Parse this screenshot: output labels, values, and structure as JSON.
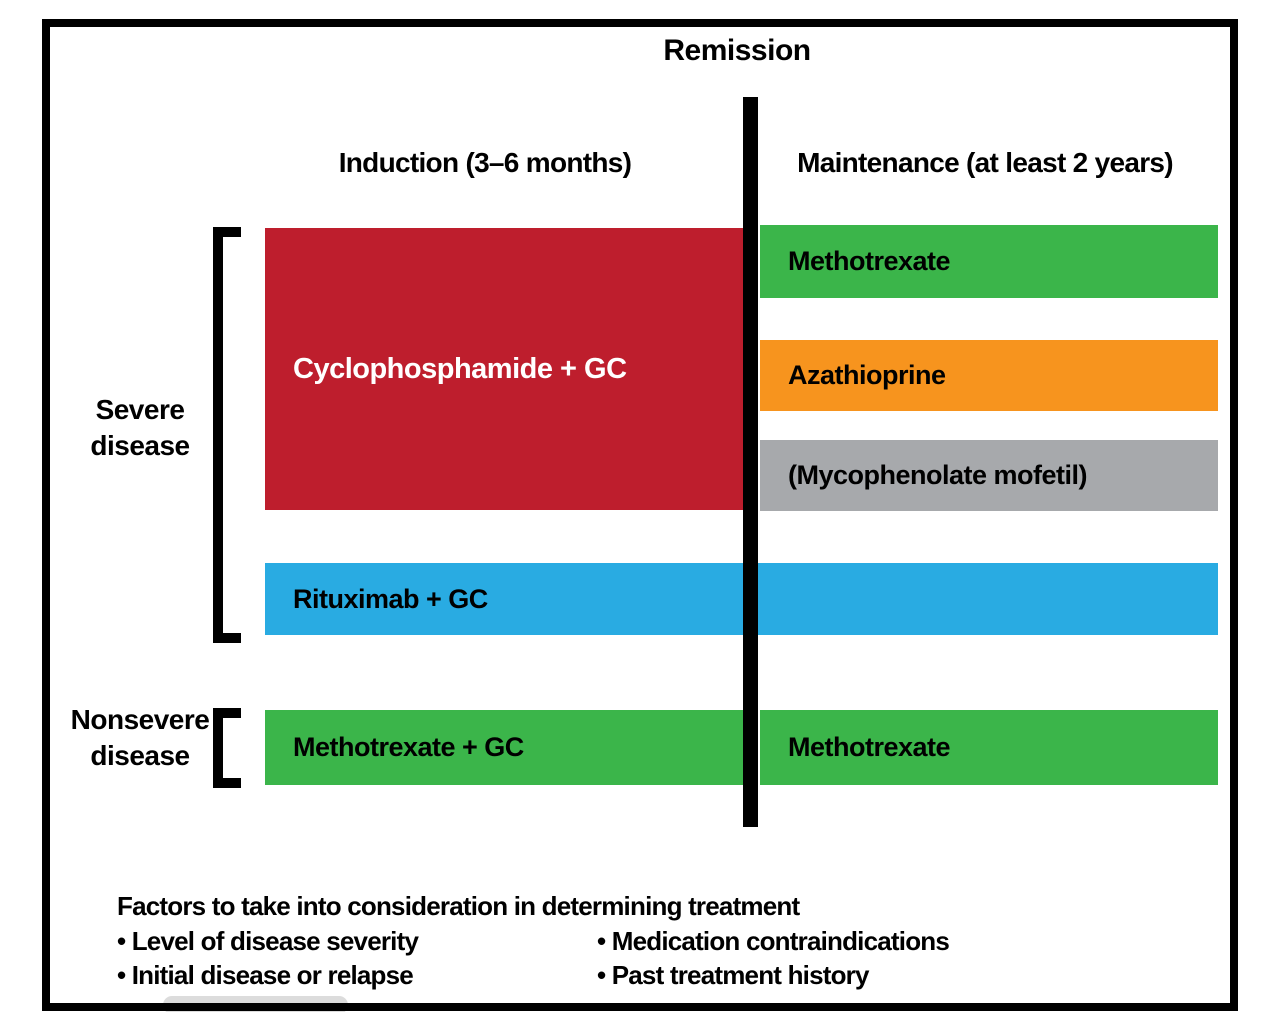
{
  "title": "Remission",
  "phases": {
    "induction": "Induction (3–6 months)",
    "maintenance": "Maintenance (at least 2 years)"
  },
  "severe": {
    "label": "Severe disease",
    "induction_bar": {
      "label": "Cyclophosphamide + GC",
      "color": "#BE1E2D",
      "text_color": "#FFFFFF"
    },
    "maintenance_bars": [
      {
        "label": "Methotrexate",
        "color": "#3BB54A",
        "text_color": "#000000"
      },
      {
        "label": "Azathioprine",
        "color": "#F7941E",
        "text_color": "#000000"
      },
      {
        "label": "(Mycophenolate mofetil)",
        "color": "#A7A9AC",
        "text_color": "#000000"
      }
    ],
    "spanning_bar": {
      "label": "Rituximab + GC",
      "color": "#29ABE2",
      "text_color": "#000000"
    }
  },
  "nonsevere": {
    "label": "Nonsevere disease",
    "induction_bar": {
      "label": "Methotrexate + GC",
      "color": "#3BB54A",
      "text_color": "#000000"
    },
    "maintenance_bar": {
      "label": "Methotrexate",
      "color": "#3BB54A",
      "text_color": "#000000"
    }
  },
  "factors": {
    "heading": "Factors to take into consideration in determining treatment",
    "left": [
      "• Level of disease severity",
      "• Initial disease or relapse"
    ],
    "right": [
      "• Medication contraindications",
      "• Past treatment history"
    ]
  },
  "colors": {
    "frame": "#000000",
    "divider": "#000000",
    "text": "#000000",
    "background": "#FFFFFF"
  }
}
